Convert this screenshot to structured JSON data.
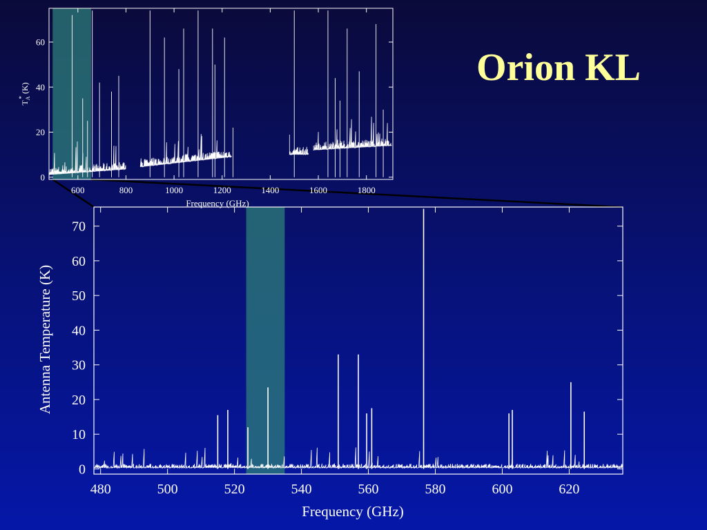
{
  "slide": {
    "title": "Orion KL"
  },
  "colors": {
    "background": "#07127a",
    "title": "#ffff99",
    "spectrum": "#ffffff",
    "highlight": "#2e7d7a"
  },
  "chart_data": [
    {
      "id": "overview",
      "type": "line",
      "xlabel": "Frequency (GHz)",
      "ylabel": "T",
      "ylabel_sup": "*",
      "ylabel_sub": "A",
      "ylabel_unit": "(K)",
      "xlim": [
        480,
        1910
      ],
      "ylim": [
        -1,
        75
      ],
      "xticks": [
        600,
        800,
        1000,
        1200,
        1400,
        1600,
        1800
      ],
      "yticks": [
        0,
        20,
        40,
        60
      ],
      "highlight_band": [
        495,
        655
      ],
      "segments": [
        {
          "x": [
            480,
            800
          ],
          "baseline": [
            1.0,
            3.5
          ]
        },
        {
          "x": [
            860,
            1240
          ],
          "baseline": [
            4.5,
            9.0
          ]
        },
        {
          "x": [
            1480,
            1560
          ],
          "baseline": [
            10.0,
            10.0
          ]
        },
        {
          "x": [
            1580,
            1905
          ],
          "baseline": [
            12.0,
            14.0
          ]
        }
      ],
      "lines": [
        {
          "x": 576,
          "y": 72
        },
        {
          "x": 620,
          "y": 35
        },
        {
          "x": 640,
          "y": 25
        },
        {
          "x": 660,
          "y": 74
        },
        {
          "x": 690,
          "y": 42
        },
        {
          "x": 740,
          "y": 38
        },
        {
          "x": 770,
          "y": 45
        },
        {
          "x": 900,
          "y": 74
        },
        {
          "x": 960,
          "y": 62
        },
        {
          "x": 1020,
          "y": 48
        },
        {
          "x": 1040,
          "y": 66
        },
        {
          "x": 1100,
          "y": 74
        },
        {
          "x": 1160,
          "y": 66
        },
        {
          "x": 1170,
          "y": 50
        },
        {
          "x": 1210,
          "y": 62
        },
        {
          "x": 1245,
          "y": 22
        },
        {
          "x": 1500,
          "y": 74
        },
        {
          "x": 1640,
          "y": 74
        },
        {
          "x": 1670,
          "y": 44
        },
        {
          "x": 1690,
          "y": 34
        },
        {
          "x": 1720,
          "y": 66
        },
        {
          "x": 1770,
          "y": 47
        },
        {
          "x": 1840,
          "y": 68
        },
        {
          "x": 1870,
          "y": 30
        }
      ]
    },
    {
      "id": "zoom",
      "type": "line",
      "xlabel": "Frequency (GHz)",
      "ylabel": "Antenna Temperature (K)",
      "xlim": [
        478,
        636
      ],
      "ylim": [
        -1.5,
        75.5
      ],
      "xticks": [
        480,
        500,
        520,
        540,
        560,
        580,
        600,
        620
      ],
      "yticks": [
        0,
        10,
        20,
        30,
        40,
        50,
        60,
        70
      ],
      "highlight_band": [
        523.5,
        535
      ],
      "lines": [
        {
          "x": 515,
          "y": 15.5
        },
        {
          "x": 518,
          "y": 17
        },
        {
          "x": 524,
          "y": 12
        },
        {
          "x": 530,
          "y": 23.5
        },
        {
          "x": 551,
          "y": 33
        },
        {
          "x": 557,
          "y": 33
        },
        {
          "x": 559.5,
          "y": 16
        },
        {
          "x": 561,
          "y": 17.5
        },
        {
          "x": 576.5,
          "y": 75
        },
        {
          "x": 602,
          "y": 16
        },
        {
          "x": 603,
          "y": 17
        },
        {
          "x": 620.5,
          "y": 25
        },
        {
          "x": 624.5,
          "y": 16.5
        }
      ]
    }
  ]
}
